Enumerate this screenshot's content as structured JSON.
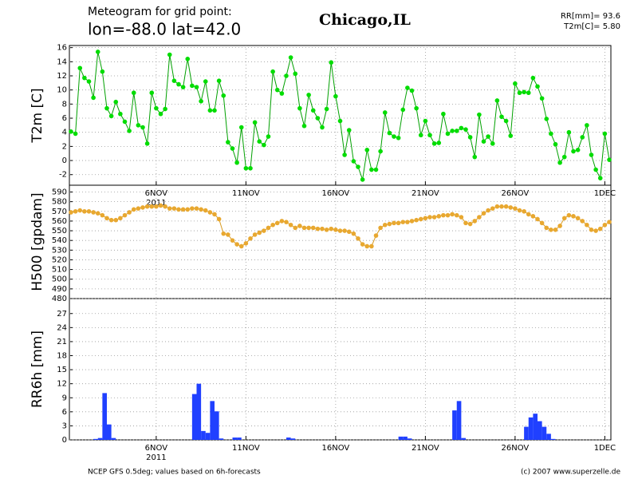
{
  "header": {
    "title": "Meteogram for grid point:",
    "subtitle": "lon=-88.0 lat=42.0",
    "location": "Chicago,IL",
    "summary": [
      "RR[mm]= 93.6",
      "T2m[C]= 5.80"
    ]
  },
  "footer": {
    "source": "NCEP GFS 0.5deg; values based on 6h-forecasts",
    "copyright": "(c) 2007 www.superzelle.de"
  },
  "chart_data": [
    {
      "type": "line",
      "ylabel": "T2m [C]",
      "color": "#00dd00",
      "line_color": "#00a000",
      "grid": true,
      "categories": [
        null,
        null,
        null,
        null,
        null,
        null,
        null,
        null,
        null,
        null,
        null,
        null,
        null,
        null,
        null,
        null,
        null,
        null,
        null,
        "6NOV",
        null,
        null,
        null,
        null,
        null,
        null,
        null,
        null,
        null,
        null,
        null,
        null,
        null,
        null,
        null,
        null,
        null,
        null,
        null,
        "11NOV",
        null,
        null,
        null,
        null,
        null,
        null,
        null,
        null,
        null,
        null,
        null,
        null,
        null,
        null,
        null,
        null,
        null,
        null,
        null,
        "16NOV",
        null,
        null,
        null,
        null,
        null,
        null,
        null,
        null,
        null,
        null,
        null,
        null,
        null,
        null,
        null,
        null,
        null,
        null,
        null,
        "21NOV",
        null,
        null,
        null,
        null,
        null,
        null,
        null,
        null,
        null,
        null,
        null,
        null,
        null,
        null,
        null,
        null,
        null,
        null,
        null,
        "26NOV",
        null,
        null,
        null,
        null,
        null,
        null,
        null,
        null,
        null,
        null,
        null,
        null,
        null,
        null,
        null,
        null,
        null,
        null,
        null,
        "1DEC",
        null
      ],
      "x_sublabel": "2011",
      "values": [
        4.1,
        3.8,
        13.1,
        11.7,
        11.2,
        8.9,
        15.4,
        12.6,
        7.4,
        6.3,
        8.3,
        6.6,
        5.5,
        4.2,
        9.6,
        5.0,
        4.7,
        2.4,
        9.6,
        7.4,
        6.6,
        7.3,
        15.0,
        11.3,
        10.8,
        10.4,
        14.4,
        10.6,
        10.4,
        8.4,
        11.2,
        7.1,
        7.1,
        11.3,
        9.2,
        2.6,
        1.7,
        -0.3,
        4.7,
        -1.1,
        -1.1,
        5.4,
        2.7,
        2.2,
        3.4,
        12.6,
        10.0,
        9.5,
        12.0,
        14.6,
        12.3,
        7.4,
        4.9,
        9.3,
        7.1,
        6.0,
        4.7,
        7.3,
        13.9,
        9.1,
        5.6,
        0.8,
        4.3,
        -0.1,
        -0.9,
        -2.7,
        1.5,
        -1.3,
        -1.3,
        1.3,
        6.8,
        3.9,
        3.4,
        3.2,
        7.2,
        10.3,
        9.9,
        7.4,
        3.6,
        5.6,
        3.6,
        2.4,
        2.5,
        6.6,
        3.8,
        4.2,
        4.2,
        4.6,
        4.4,
        3.3,
        0.5,
        6.5,
        2.7,
        3.4,
        2.4,
        8.5,
        6.2,
        5.6,
        3.5,
        10.9,
        9.6,
        9.7,
        9.6,
        11.7,
        10.5,
        8.8,
        5.9,
        3.8,
        2.3,
        -0.3,
        0.5,
        4.0,
        1.3,
        1.5,
        3.3,
        5.0,
        0.8,
        -1.3,
        -2.5,
        3.8,
        0.1
      ],
      "ylim": [
        -3.5,
        16.3
      ],
      "yticks": [
        -2,
        0,
        2,
        4,
        6,
        8,
        10,
        12,
        14,
        16
      ]
    },
    {
      "type": "line",
      "ylabel": "H500 [gpdam]",
      "color": "#e8a830",
      "line_color": "#d89a20",
      "grid": true,
      "values": [
        569,
        570,
        571,
        570,
        570,
        569,
        568,
        566,
        563,
        561,
        561,
        563,
        566,
        569,
        572,
        573,
        574,
        575,
        575,
        575,
        576,
        575,
        573,
        573,
        572,
        572,
        572,
        573,
        573,
        572,
        571,
        569,
        567,
        562,
        547,
        546,
        540,
        536,
        534,
        537,
        542,
        546,
        548,
        550,
        553,
        556,
        558,
        560,
        559,
        556,
        553,
        555,
        553,
        553,
        553,
        552,
        552,
        551,
        552,
        551,
        550,
        550,
        549,
        547,
        542,
        536,
        534,
        534,
        545,
        553,
        556,
        557,
        558,
        558,
        559,
        559,
        560,
        561,
        562,
        563,
        564,
        564,
        565,
        566,
        566,
        567,
        566,
        564,
        558,
        557,
        560,
        564,
        568,
        571,
        573,
        575,
        575,
        575,
        574,
        573,
        571,
        570,
        567,
        565,
        562,
        558,
        553,
        551,
        551,
        555,
        563,
        566,
        565,
        563,
        560,
        556,
        551,
        550,
        552,
        556,
        559
      ],
      "ylim": [
        480,
        597
      ],
      "yticks": [
        480,
        490,
        500,
        510,
        520,
        530,
        540,
        550,
        560,
        570,
        580,
        590
      ]
    },
    {
      "type": "bar",
      "ylabel": "RR6h [mm]",
      "color": "#2040ff",
      "grid": true,
      "categories": [
        null,
        null,
        null,
        null,
        null,
        null,
        null,
        null,
        null,
        null,
        null,
        null,
        null,
        null,
        null,
        null,
        null,
        null,
        null,
        "6NOV",
        null,
        null,
        null,
        null,
        null,
        null,
        null,
        null,
        null,
        null,
        null,
        null,
        null,
        null,
        null,
        null,
        null,
        null,
        null,
        "11NOV",
        null,
        null,
        null,
        null,
        null,
        null,
        null,
        null,
        null,
        null,
        null,
        null,
        null,
        null,
        null,
        null,
        null,
        null,
        null,
        "16NOV",
        null,
        null,
        null,
        null,
        null,
        null,
        null,
        null,
        null,
        null,
        null,
        null,
        null,
        null,
        null,
        null,
        null,
        null,
        null,
        "21NOV",
        null,
        null,
        null,
        null,
        null,
        null,
        null,
        null,
        null,
        null,
        null,
        null,
        null,
        null,
        null,
        null,
        null,
        null,
        null,
        "26NOV",
        null,
        null,
        null,
        null,
        null,
        null,
        null,
        null,
        null,
        null,
        null,
        null,
        null,
        null,
        null,
        null,
        null,
        null,
        null,
        "1DEC",
        null
      ],
      "x_sublabel": "2011",
      "values": [
        0,
        0,
        0,
        0,
        0,
        0,
        0.2,
        0.4,
        10.0,
        3.3,
        0.4,
        0,
        0,
        0,
        0,
        0,
        0,
        0,
        0,
        0,
        0,
        0,
        0,
        0,
        0,
        0,
        0,
        0,
        9.8,
        12.0,
        1.9,
        1.5,
        8.3,
        6.1,
        0.3,
        0,
        0,
        0.5,
        0.5,
        0,
        0,
        0,
        0,
        0,
        0,
        0,
        0,
        0,
        0,
        0.5,
        0.3,
        0,
        0,
        0,
        0,
        0,
        0,
        0,
        0,
        0,
        0,
        0,
        0,
        0,
        0,
        0,
        0,
        0,
        0,
        0,
        0,
        0,
        0,
        0,
        0.7,
        0.7,
        0.3,
        0,
        0,
        0,
        0,
        0,
        0,
        0,
        0,
        0,
        6.3,
        8.3,
        0.4,
        0,
        0,
        0,
        0,
        0,
        0,
        0,
        0,
        0,
        0,
        0,
        0,
        0,
        2.8,
        4.8,
        5.6,
        4.0,
        2.8,
        1.3,
        0.2,
        0,
        0,
        0,
        0,
        0,
        0,
        0,
        0,
        0,
        0,
        0,
        0
      ],
      "ylim": [
        0,
        30.2
      ],
      "yticks": [
        0,
        3,
        6,
        9,
        12,
        15,
        18,
        21,
        24,
        27
      ]
    }
  ]
}
